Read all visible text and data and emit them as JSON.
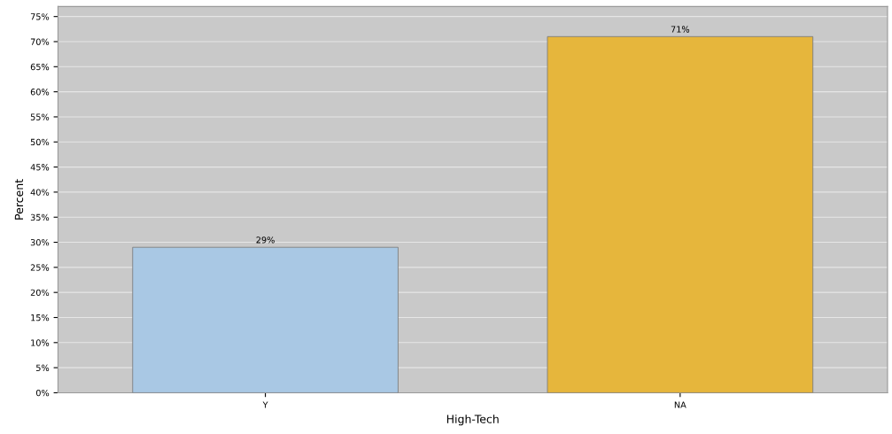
{
  "chart_data": {
    "type": "bar",
    "xlabel": "High-Tech",
    "ylabel": "Percent",
    "categories": [
      "Y",
      "NA"
    ],
    "values": [
      29,
      71
    ],
    "colors": [
      "#a9c8e4",
      "#e6b63c"
    ],
    "value_labels": [
      "29%",
      "71%"
    ],
    "ylim": [
      0,
      77
    ],
    "yticks": [
      {
        "value": 0,
        "label": "0%"
      },
      {
        "value": 5,
        "label": "5%"
      },
      {
        "value": 10,
        "label": "10%"
      },
      {
        "value": 15,
        "label": "15%"
      },
      {
        "value": 20,
        "label": "20%"
      },
      {
        "value": 25,
        "label": "25%"
      },
      {
        "value": 30,
        "label": "30%"
      },
      {
        "value": 35,
        "label": "35%"
      },
      {
        "value": 40,
        "label": "40%"
      },
      {
        "value": 45,
        "label": "45%"
      },
      {
        "value": 50,
        "label": "50%"
      },
      {
        "value": 55,
        "label": "55%"
      },
      {
        "value": 60,
        "label": "60%"
      },
      {
        "value": 65,
        "label": "65%"
      },
      {
        "value": 70,
        "label": "70%"
      },
      {
        "value": 75,
        "label": "75%"
      }
    ],
    "grid": "y"
  }
}
